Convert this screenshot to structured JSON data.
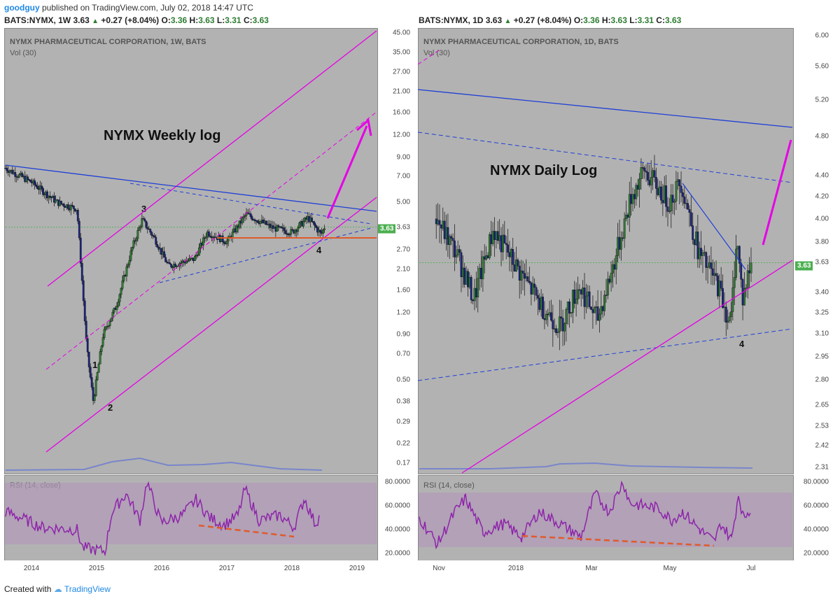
{
  "header": {
    "user": "goodguy",
    "published": "published on TradingView.com, July 02, 2018 14:47 UTC"
  },
  "left": {
    "symbol": "BATS:NYMX, 1W",
    "last": "3.63",
    "change": "+0.27 (+8.04%)",
    "o_label": "O:",
    "o": "3.36",
    "h_label": "H:",
    "h": "3.63",
    "l_label": "L:",
    "l": "3.31",
    "c_label": "C:",
    "c": "3.63",
    "panel_title": "NYMX PHARMACEUTICAL CORPORATION, 1W, BATS",
    "vol_label": "Vol (30)",
    "big_title": "NYMX Weekly log",
    "waves": [
      "1",
      "2",
      "3",
      "4"
    ],
    "price_box": "3.63",
    "y_ticks": [
      "45.00",
      "35.00",
      "27.00",
      "21.00",
      "16.00",
      "12.00",
      "9.00",
      "7.00",
      "5.00",
      "3.63",
      "2.70",
      "2.10",
      "1.60",
      "1.20",
      "0.90",
      "0.70",
      "0.50",
      "0.38",
      "0.29",
      "0.22",
      "0.17"
    ],
    "x_ticks": [
      "2014",
      "2015",
      "2016",
      "2017",
      "2018",
      "2019"
    ],
    "rsi_label": "RSI (14, close)",
    "rsi_ticks": [
      "80.0000",
      "60.0000",
      "40.0000",
      "20.0000"
    ]
  },
  "right": {
    "symbol": "BATS:NYMX, 1D",
    "last": "3.63",
    "change": "+0.27 (+8.04%)",
    "o_label": "O:",
    "o": "3.36",
    "h_label": "H:",
    "h": "3.63",
    "l_label": "L:",
    "l": "3.31",
    "c_label": "C:",
    "c": "3.63",
    "panel_title": "NYMX PHARMACEUTICAL CORPORATION, 1D, BATS",
    "vol_label": "Vol (30)",
    "big_title": "NYMX Daily Log",
    "waves": [
      "4"
    ],
    "price_box": "3.63",
    "y_ticks": [
      "6.00",
      "5.60",
      "5.20",
      "4.80",
      "4.40",
      "4.20",
      "4.00",
      "3.80",
      "3.63",
      "3.40",
      "3.25",
      "3.10",
      "2.95",
      "2.80",
      "2.65",
      "2.53",
      "2.42",
      "2.31"
    ],
    "x_ticks": [
      "Nov",
      "2018",
      "Mar",
      "May",
      "Jul"
    ],
    "rsi_label": "RSI (14, close)",
    "rsi_ticks": [
      "80.0000",
      "60.0000",
      "40.0000",
      "20.0000"
    ]
  },
  "footer": {
    "created": "Created with",
    "brand": "TradingView"
  },
  "colors": {
    "bg": "#b2b2b2",
    "rsi_band": "#b29ab9",
    "rsi_line": "#8e24aa",
    "magenta": "#e600e6",
    "blue": "#1f3fd6",
    "red": "#e05a2a",
    "green": "#4caf50"
  },
  "chart_data": [
    {
      "type": "candlestick",
      "title": "NYMX PHARMACEUTICAL CORPORATION, 1W, BATS",
      "scale": "log",
      "ylim": [
        0.15,
        48
      ],
      "x": [
        "2014",
        "2015",
        "2016",
        "2017",
        "2018",
        "2019"
      ],
      "close_path": [
        {
          "x": "2013.6",
          "y": 7.8
        },
        {
          "x": "2014.0",
          "y": 6.5
        },
        {
          "x": "2014.4",
          "y": 5.0
        },
        {
          "x": "2014.7",
          "y": 4.6
        },
        {
          "x": "2014.85",
          "y": 0.75
        },
        {
          "x": "2014.95",
          "y": 0.38
        },
        {
          "x": "2015.1",
          "y": 0.9
        },
        {
          "x": "2015.3",
          "y": 1.3
        },
        {
          "x": "2015.55",
          "y": 2.8
        },
        {
          "x": "2015.7",
          "y": 4.0
        },
        {
          "x": "2015.9",
          "y": 3.1
        },
        {
          "x": "2016.1",
          "y": 2.2
        },
        {
          "x": "2016.5",
          "y": 2.4
        },
        {
          "x": "2016.7",
          "y": 3.4
        },
        {
          "x": "2017.0",
          "y": 3.0
        },
        {
          "x": "2017.3",
          "y": 4.3
        },
        {
          "x": "2017.7",
          "y": 3.6
        },
        {
          "x": "2018.0",
          "y": 3.4
        },
        {
          "x": "2018.25",
          "y": 4.1
        },
        {
          "x": "2018.45",
          "y": 3.3
        },
        {
          "x": "2018.5",
          "y": 3.63
        }
      ],
      "support_level": 3.0,
      "rsi": {
        "label": "RSI (14, close)",
        "ylim": [
          15,
          85
        ]
      }
    },
    {
      "type": "candlestick",
      "title": "NYMX PHARMACEUTICAL CORPORATION, 1D, BATS",
      "scale": "log",
      "ylim": [
        2.28,
        6.1
      ],
      "x": [
        "Nov",
        "2018",
        "Mar",
        "May",
        "Jul"
      ],
      "close_path": [
        {
          "x": "2017-10-15",
          "y": 4.0
        },
        {
          "x": "2017-11-01",
          "y": 3.7
        },
        {
          "x": "2017-11-15",
          "y": 3.35
        },
        {
          "x": "2017-12-01",
          "y": 3.9
        },
        {
          "x": "2017-12-20",
          "y": 3.6
        },
        {
          "x": "2018-01-10",
          "y": 3.3
        },
        {
          "x": "2018-01-25",
          "y": 3.15
        },
        {
          "x": "2018-02-10",
          "y": 3.45
        },
        {
          "x": "2018-02-25",
          "y": 3.2
        },
        {
          "x": "2018-03-10",
          "y": 3.6
        },
        {
          "x": "2018-03-25",
          "y": 4.2
        },
        {
          "x": "2018-04-05",
          "y": 4.45
        },
        {
          "x": "2018-04-25",
          "y": 4.15
        },
        {
          "x": "2018-05-05",
          "y": 4.35
        },
        {
          "x": "2018-05-20",
          "y": 3.7
        },
        {
          "x": "2018-06-05",
          "y": 3.45
        },
        {
          "x": "2018-06-15",
          "y": 3.15
        },
        {
          "x": "2018-06-20",
          "y": 3.85
        },
        {
          "x": "2018-06-25",
          "y": 3.35
        },
        {
          "x": "2018-07-02",
          "y": 3.63
        }
      ],
      "rsi": {
        "label": "RSI (14, close)",
        "ylim": [
          15,
          85
        ]
      }
    }
  ]
}
